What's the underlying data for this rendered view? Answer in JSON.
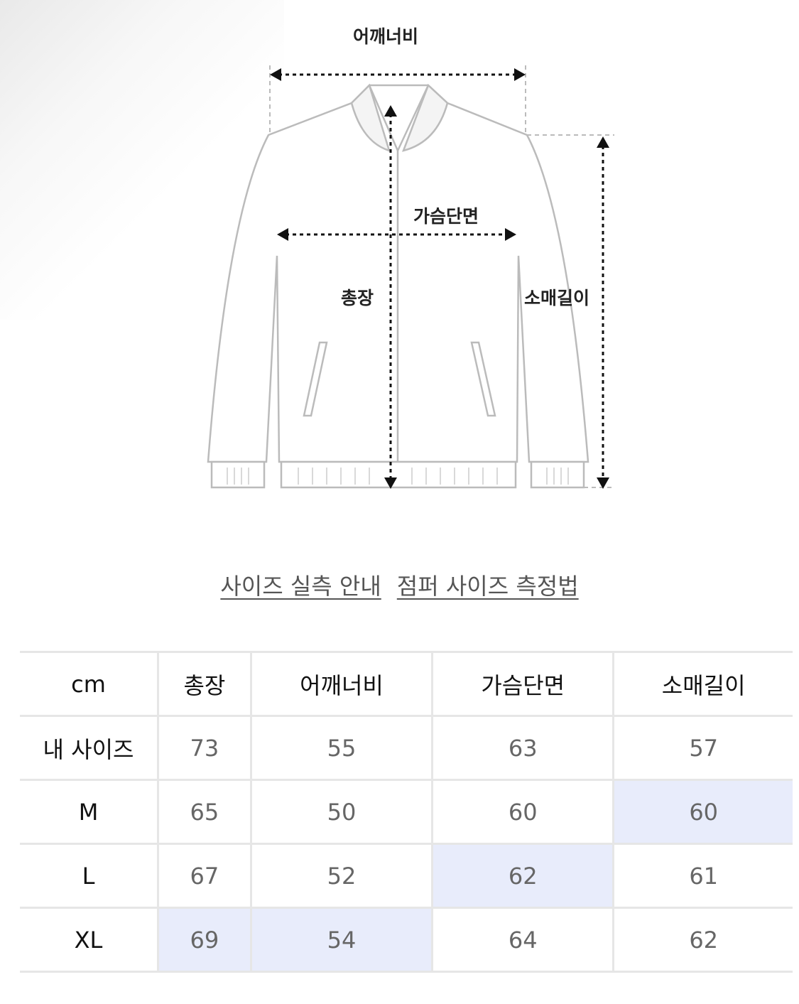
{
  "diagram": {
    "labels": {
      "shoulder": "어깨너비",
      "chest": "가슴단면",
      "length": "총장",
      "sleeve": "소매길이"
    }
  },
  "links": [
    {
      "label": "사이즈 실측 안내"
    },
    {
      "label": "점퍼 사이즈 측정법"
    }
  ],
  "table": {
    "headers": [
      "cm",
      "총장",
      "어깨너비",
      "가슴단면",
      "소매길이"
    ],
    "rows": [
      {
        "size": "내 사이즈",
        "values": [
          "73",
          "55",
          "63",
          "57"
        ],
        "highlight": []
      },
      {
        "size": "M",
        "values": [
          "65",
          "50",
          "60",
          "60"
        ],
        "highlight": [
          3
        ]
      },
      {
        "size": "L",
        "values": [
          "67",
          "52",
          "62",
          "61"
        ],
        "highlight": [
          2
        ]
      },
      {
        "size": "XL",
        "values": [
          "69",
          "54",
          "64",
          "62"
        ],
        "highlight": [
          0,
          1
        ]
      }
    ],
    "highlight_color": "#e8ecfb"
  }
}
